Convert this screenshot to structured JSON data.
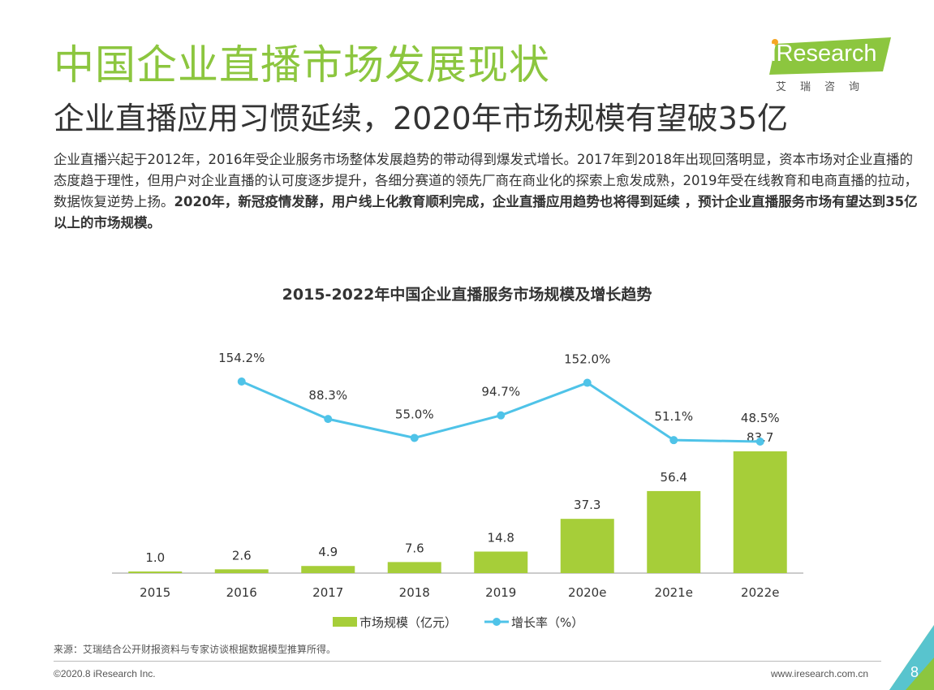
{
  "header": {
    "title": "中国企业直播市场发展现状",
    "subtitle": "企业直播应用习惯延续，2020年市场规模有望破35亿"
  },
  "logo": {
    "name": "iResearch",
    "cn": "艾瑞咨询"
  },
  "description": {
    "normal": "企业直播兴起于2012年，2016年受企业服务市场整体发展趋势的带动得到爆发式增长。2017年到2018年出现回落明显，资本市场对企业直播的态度趋于理性，但用户对企业直播的认可度逐步提升，各细分赛道的领先厂商在商业化的探索上愈发成熟，2019年受在线教育和电商直播的拉动，数据恢复逆势上扬。",
    "bold": "2020年，新冠疫情发酵，用户线上化教育顺利完成，企业直播应用趋势也将得到延续 ，预计企业直播服务市场有望达到35亿以上的市场规模。"
  },
  "chart_data": {
    "type": "bar+line",
    "title": "2015-2022年中国企业直播服务市场规模及增长趋势",
    "categories": [
      "2015",
      "2016",
      "2017",
      "2018",
      "2019",
      "2020e",
      "2021e",
      "2022e"
    ],
    "series": [
      {
        "name": "市场规模（亿元）",
        "type": "bar",
        "values": [
          1.0,
          2.6,
          4.9,
          7.6,
          14.8,
          37.3,
          56.4,
          83.7
        ],
        "labels": [
          "1.0",
          "2.6",
          "4.9",
          "7.6",
          "14.8",
          "37.3",
          "56.4",
          "83.7"
        ]
      },
      {
        "name": "增长率（%）",
        "type": "line",
        "values": [
          null,
          154.2,
          88.3,
          55.0,
          94.7,
          152.0,
          51.1,
          48.5
        ],
        "labels": [
          "",
          "154.2%",
          "88.3%",
          "55.0%",
          "94.7%",
          "152.0%",
          "51.1%",
          "48.5%"
        ]
      }
    ],
    "colors": {
      "bar": "#a6ce39",
      "line": "#4fc3e8"
    },
    "legend_position": "bottom"
  },
  "source": "来源：艾瑞结合公开财报资料与专家访谈根据数据模型推算所得。",
  "footer": {
    "copyright": "©2020.8 iResearch Inc.",
    "website": "www.iresearch.com.cn",
    "page": "8"
  }
}
